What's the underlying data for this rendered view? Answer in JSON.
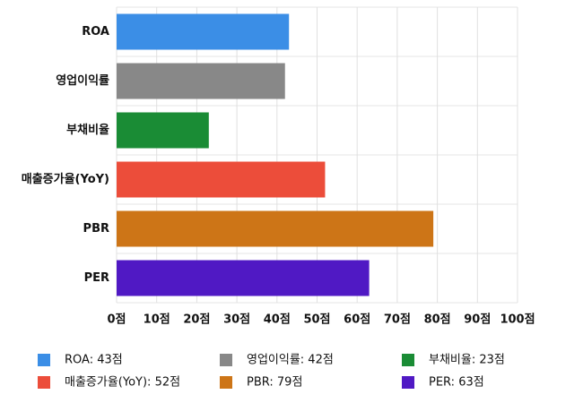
{
  "chart_data": {
    "type": "bar",
    "orientation": "horizontal",
    "categories": [
      "ROA",
      "영업이익률",
      "부채비율",
      "매출증가율(YoY)",
      "PBR",
      "PER"
    ],
    "values": [
      43,
      42,
      23,
      52,
      79,
      63
    ],
    "value_labels": [
      "ROA: 43점",
      "영업이익률: 42점",
      "부채비율: 23점",
      "매출증가율(YoY): 52점",
      "PBR: 79점",
      "PER: 63점"
    ],
    "colors": [
      "#3b8ee6",
      "#888888",
      "#1a8c35",
      "#ec4d3a",
      "#cd7517",
      "#5019c4"
    ],
    "xlim": [
      0,
      100
    ],
    "xticks": [
      {
        "value": 0,
        "label": "0점"
      },
      {
        "value": 10,
        "label": "10점"
      },
      {
        "value": 20,
        "label": "20점"
      },
      {
        "value": 30,
        "label": "30점"
      },
      {
        "value": 40,
        "label": "40점"
      },
      {
        "value": 50,
        "label": "50점"
      },
      {
        "value": 60,
        "label": "60점"
      },
      {
        "value": 70,
        "label": "70점"
      },
      {
        "value": 80,
        "label": "80점"
      },
      {
        "value": 90,
        "label": "90점"
      },
      {
        "value": 100,
        "label": "100점"
      }
    ],
    "grid": true
  }
}
